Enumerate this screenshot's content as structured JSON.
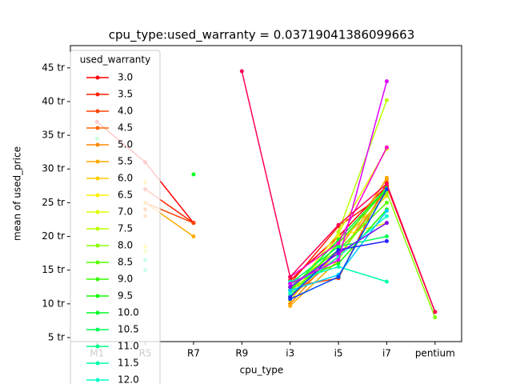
{
  "chart_data": {
    "type": "line",
    "title": "cpu_type:used_warranty = 0.03719041386099663",
    "x_label": "cpu_type",
    "y_label": "mean of used_price",
    "legend_title": "used_warranty",
    "legend": "upper left",
    "categories": [
      "M1",
      "R5",
      "R7",
      "R9",
      "i3",
      "i5",
      "i7",
      "pentium"
    ],
    "ylim": [
      4.4,
      48.3
    ],
    "yticks": [
      {
        "value": 5,
        "label": "5 tr"
      },
      {
        "value": 10,
        "label": "10 tr"
      },
      {
        "value": 15,
        "label": "15 tr"
      },
      {
        "value": 20,
        "label": "20 tr"
      },
      {
        "value": 25,
        "label": "25 tr"
      },
      {
        "value": 30,
        "label": "30 tr"
      },
      {
        "value": 35,
        "label": "35 tr"
      },
      {
        "value": 40,
        "label": "40 tr"
      },
      {
        "value": 45,
        "label": "45 tr"
      }
    ],
    "series": [
      {
        "name": "3.0",
        "color": "#ff0000",
        "values": [
          37,
          31,
          22,
          null,
          13.5,
          20,
          27.5,
          8.8
        ]
      },
      {
        "name": "3.5",
        "color": "#ff2200",
        "values": [
          null,
          27,
          22,
          null,
          13,
          21.5,
          26.5,
          null
        ]
      },
      {
        "name": "4.0",
        "color": "#ff4400",
        "values": [
          null,
          25,
          22,
          null,
          12.5,
          13.8,
          28,
          null
        ]
      },
      {
        "name": "4.5",
        "color": "#ff6600",
        "values": [
          null,
          24,
          null,
          null,
          11,
          17,
          27,
          null
        ]
      },
      {
        "name": "5.0",
        "color": "#ff8800",
        "values": [
          null,
          23,
          null,
          null,
          10,
          18,
          28.5,
          null
        ]
      },
      {
        "name": "5.5",
        "color": "#ffaa00",
        "values": [
          null,
          25,
          20,
          null,
          9.7,
          16.5,
          28.7,
          null
        ]
      },
      {
        "name": "6.0",
        "color": "#ffcc00",
        "values": [
          null,
          28,
          null,
          null,
          10.5,
          19,
          26,
          null
        ]
      },
      {
        "name": "6.5",
        "color": "#ffee00",
        "values": [
          null,
          18.5,
          null,
          null,
          11,
          20,
          22,
          null
        ]
      },
      {
        "name": "7.0",
        "color": "#ddff00",
        "values": [
          null,
          null,
          null,
          null,
          11.5,
          20.5,
          33,
          null
        ]
      },
      {
        "name": "7.5",
        "color": "#bbff00",
        "values": [
          null,
          17.8,
          null,
          null,
          null,
          20.7,
          40.2,
          null
        ]
      },
      {
        "name": "8.0",
        "color": "#88ff00",
        "values": [
          null,
          null,
          null,
          null,
          12,
          17,
          26.5,
          8.0
        ]
      },
      {
        "name": "8.5",
        "color": "#55ff00",
        "values": [
          null,
          null,
          null,
          null,
          12.5,
          18,
          25,
          null
        ]
      },
      {
        "name": "9.0",
        "color": "#33ff00",
        "values": [
          null,
          null,
          null,
          null,
          11,
          19,
          27,
          null
        ]
      },
      {
        "name": "9.5",
        "color": "#11ff00",
        "values": [
          null,
          null,
          null,
          null,
          13,
          16,
          24,
          null
        ]
      },
      {
        "name": "10.0",
        "color": "#00ff22",
        "values": [
          null,
          null,
          29.2,
          null,
          12,
          19.5,
          27.2,
          null
        ]
      },
      {
        "name": "10.5",
        "color": "#00ff55",
        "values": [
          34.5,
          null,
          null,
          null,
          13,
          18.5,
          20,
          null
        ]
      },
      {
        "name": "11.0",
        "color": "#00ff88",
        "values": [
          null,
          16.5,
          null,
          null,
          12.5,
          17.5,
          22,
          null
        ]
      },
      {
        "name": "11.5",
        "color": "#00ffaa",
        "values": [
          null,
          15,
          null,
          null,
          13.3,
          15.5,
          13.3,
          null
        ]
      },
      {
        "name": "12.0",
        "color": "#00ffcc",
        "values": [
          null,
          null,
          null,
          null,
          11.5,
          17,
          23,
          null
        ]
      },
      {
        "color": "#00ccff",
        "values": [
          null,
          null,
          null,
          null,
          12,
          14.3,
          23.8,
          null
        ]
      },
      {
        "color": "#0044ff",
        "values": [
          null,
          null,
          null,
          null,
          10.7,
          14,
          27,
          null
        ]
      },
      {
        "color": "#2222ff",
        "values": [
          null,
          null,
          null,
          null,
          11,
          18,
          19.3,
          null
        ]
      },
      {
        "color": "#8800ff",
        "values": [
          null,
          null,
          null,
          null,
          12.5,
          17.5,
          22,
          null
        ]
      },
      {
        "color": "#dd00ff",
        "values": [
          null,
          null,
          null,
          null,
          13,
          16.5,
          43,
          null
        ]
      },
      {
        "color": "#ff00cc",
        "values": [
          null,
          null,
          null,
          null,
          14,
          19,
          33.2,
          null
        ]
      },
      {
        "color": "#ff0055",
        "values": [
          null,
          null,
          null,
          44.5,
          14,
          21.7,
          27.8,
          8.8
        ]
      }
    ]
  }
}
